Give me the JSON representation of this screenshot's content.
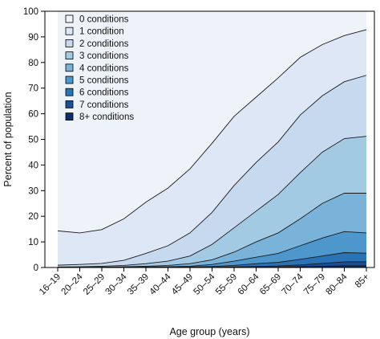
{
  "chart_data": {
    "type": "area",
    "stacking": "cumulative percent of population with at least N conditions",
    "xlabel": "Age group (years)",
    "ylabel": "Percent of population",
    "ylim": [
      0,
      100
    ],
    "yticks": [
      0,
      10,
      20,
      30,
      40,
      50,
      60,
      70,
      80,
      90,
      100
    ],
    "legend_position": "top-left",
    "categories": [
      "16–19",
      "20–24",
      "25–29",
      "30–34",
      "35–39",
      "40–44",
      "45–49",
      "50–54",
      "55–59",
      "60–64",
      "65–69",
      "70–74",
      "75–79",
      "80–84",
      "85+"
    ],
    "series": [
      {
        "name": "0 conditions",
        "color": "#eef3fa",
        "values": [
          100,
          100,
          100,
          100,
          100,
          100,
          100,
          100,
          100,
          100,
          100,
          100,
          100,
          100,
          100
        ]
      },
      {
        "name": "1 condition",
        "color": "#dde7f5",
        "values": [
          14.3,
          13.5,
          14.8,
          19,
          25.5,
          31,
          38.5,
          48.5,
          59,
          66.5,
          74,
          82,
          87,
          90.5,
          92.8
        ]
      },
      {
        "name": "2 conditions",
        "color": "#c7d9ee",
        "values": [
          0.9,
          1.2,
          1.6,
          2.8,
          5.5,
          8.5,
          13.5,
          21.5,
          32,
          41,
          49,
          59.5,
          67,
          72.5,
          75
        ]
      },
      {
        "name": "3 conditions",
        "color": "#a3cae3",
        "values": [
          0.2,
          0.3,
          0.5,
          0.8,
          1.5,
          2.5,
          4.5,
          9,
          15.5,
          22,
          28.5,
          37,
          45,
          50.3,
          51.2
        ]
      },
      {
        "name": "4 conditions",
        "color": "#79b3d9",
        "values": [
          0.05,
          0.1,
          0.15,
          0.3,
          0.5,
          0.8,
          1.5,
          3,
          6,
          10,
          13.5,
          19,
          25,
          29,
          29
        ]
      },
      {
        "name": "5 conditions",
        "color": "#4d97cc",
        "values": [
          0.02,
          0.03,
          0.05,
          0.1,
          0.2,
          0.3,
          0.5,
          1.2,
          2.5,
          4,
          5.5,
          8.5,
          11.5,
          14,
          13.5
        ]
      },
      {
        "name": "6 conditions",
        "color": "#2a73b5",
        "values": [
          0.01,
          0.01,
          0.02,
          0.03,
          0.05,
          0.1,
          0.2,
          0.4,
          0.8,
          1.5,
          2,
          3.2,
          4.5,
          5.8,
          5.6
        ]
      },
      {
        "name": "7 conditions",
        "color": "#17509a",
        "values": [
          0,
          0,
          0,
          0.01,
          0.02,
          0.03,
          0.05,
          0.1,
          0.2,
          0.4,
          0.6,
          1,
          1.6,
          2.2,
          2.2
        ]
      },
      {
        "name": "8+ conditions",
        "color": "#0b2f6e",
        "values": [
          0,
          0,
          0,
          0,
          0,
          0.01,
          0.02,
          0.03,
          0.05,
          0.1,
          0.15,
          0.3,
          0.5,
          0.7,
          0.7
        ]
      }
    ]
  }
}
